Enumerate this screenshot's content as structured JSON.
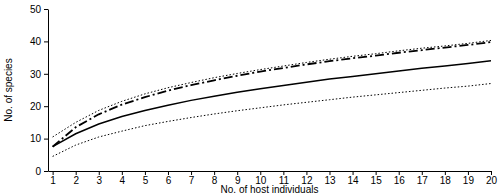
{
  "chart_data": {
    "type": "line",
    "x_label": "No. of host individuals",
    "y_label": "No. of species",
    "x": [
      1,
      2,
      3,
      4,
      5,
      6,
      7,
      8,
      9,
      10,
      11,
      12,
      13,
      14,
      15,
      16,
      17,
      18,
      19,
      20
    ],
    "series": [
      {
        "color": "#000000",
        "line_style": "solid",
        "values": [
          7.5,
          11.5,
          14.5,
          16.8,
          18.7,
          20.3,
          21.8,
          23.1,
          24.3,
          25.4,
          26.4,
          27.4,
          28.4,
          29.2,
          30.0,
          30.9,
          31.7,
          32.4,
          33.2,
          34.0
        ]
      },
      {
        "color": "#000000",
        "line_style": "dashdot",
        "values": [
          7.5,
          13.5,
          17.5,
          20.5,
          22.8,
          24.8,
          26.5,
          28.0,
          29.4,
          30.7,
          31.8,
          32.9,
          33.9,
          34.8,
          35.6,
          36.5,
          37.3,
          38.1,
          38.9,
          39.8
        ]
      },
      {
        "color": "#000000",
        "line_style": "dotted",
        "values": [
          10.5,
          15.0,
          18.7,
          21.5,
          23.8,
          25.7,
          27.3,
          28.8,
          30.1,
          31.3,
          32.4,
          33.5,
          34.5,
          35.4,
          36.2,
          37.1,
          37.9,
          38.6,
          39.4,
          40.3
        ]
      },
      {
        "color": "#000000",
        "line_style": "dotted",
        "values": [
          4.5,
          8.0,
          10.5,
          12.3,
          14.0,
          15.3,
          16.5,
          17.6,
          18.6,
          19.5,
          20.4,
          21.2,
          22.0,
          22.8,
          23.5,
          24.2,
          24.9,
          25.6,
          26.2,
          27.0
        ]
      }
    ],
    "xlim": [
      0.8,
      20
    ],
    "xticks": [
      1,
      2,
      3,
      4,
      5,
      6,
      7,
      8,
      9,
      10,
      11,
      12,
      13,
      14,
      15,
      16,
      17,
      18,
      19,
      20
    ],
    "ylim": [
      0,
      50
    ],
    "yticks": [
      0,
      10,
      20,
      30,
      40,
      50
    ],
    "grid": false
  }
}
